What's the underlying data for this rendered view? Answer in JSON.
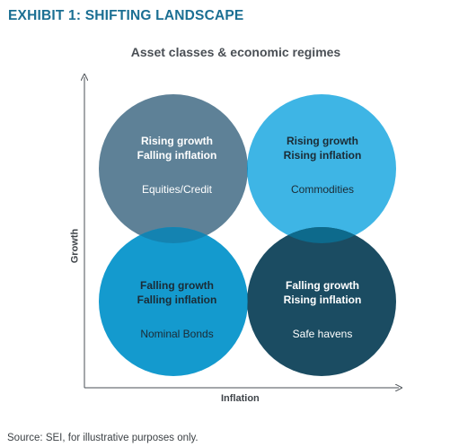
{
  "header": {
    "exhibit_title": "EXHIBIT 1: SHIFTING LANDSCAPE",
    "chart_title": "Asset classes & economic regimes"
  },
  "axes": {
    "y_label": "Growth",
    "x_label": "Inflation"
  },
  "quadrants": [
    {
      "id": "top-left",
      "line1": "Rising growth",
      "line2": "Falling inflation",
      "asset": "Equities/Credit",
      "color": "#5e8197"
    },
    {
      "id": "top-right",
      "line1": "Rising growth",
      "line2": "Rising inflation",
      "asset": "Commodities",
      "color": "#3eb5e5"
    },
    {
      "id": "bottom-left",
      "line1": "Falling growth",
      "line2": "Falling inflation",
      "asset": "Nominal Bonds",
      "color": "#149ace"
    },
    {
      "id": "bottom-right",
      "line1": "Falling growth",
      "line2": "Rising inflation",
      "asset": "Safe havens",
      "color": "#1b4c62"
    }
  ],
  "overlap_colors": {
    "top": "#1a8bbc",
    "left": "#1483b1",
    "right": "#0d6a8c",
    "bottom": "#107ea9"
  },
  "footer": {
    "source": "Source: SEI, for illustrative purposes only."
  }
}
